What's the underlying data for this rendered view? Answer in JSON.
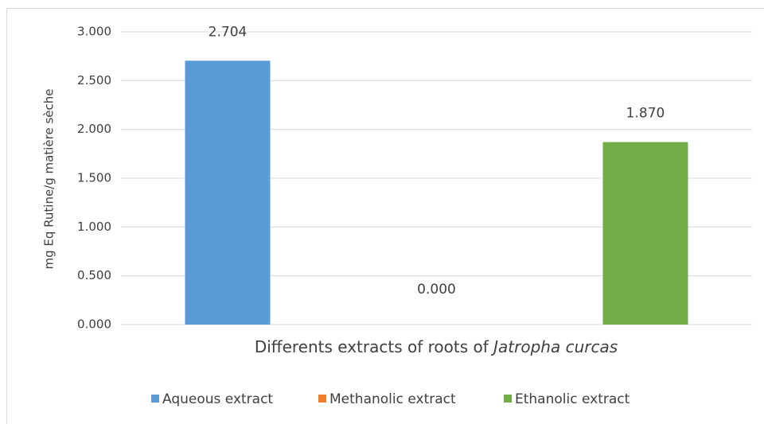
{
  "chart_data": {
    "type": "bar",
    "ylabel": "mg Eq Rutine/g matière sèche",
    "xlabel": {
      "text": "Differents extracts of roots of",
      "italic": "Jatropha curcas"
    },
    "categories": [
      null
    ],
    "series": [
      {
        "name": "Aqueous extract",
        "color": "#5b9bd5",
        "values": [
          2.704
        ],
        "value_labels": [
          "2.704"
        ]
      },
      {
        "name": "Methanolic extract",
        "color": "#ed7d31",
        "values": [
          0
        ],
        "value_labels": [
          "0.000"
        ]
      },
      {
        "name": "Ethanolic extract",
        "color": "#70ad47",
        "values": [
          1.87
        ],
        "value_labels": [
          "1.870"
        ]
      }
    ],
    "ylim": [
      0,
      3
    ],
    "yticks": [
      {
        "value": 0,
        "label": "0.000"
      },
      {
        "value": 0.5,
        "label": "0.500"
      },
      {
        "value": 1,
        "label": "1.000"
      },
      {
        "value": 1.5,
        "label": "1.500"
      },
      {
        "value": 2,
        "label": "2.000"
      },
      {
        "value": 2.5,
        "label": "2.500"
      },
      {
        "value": 3,
        "label": "3.000"
      }
    ],
    "grid": true,
    "legend": "bottom"
  }
}
